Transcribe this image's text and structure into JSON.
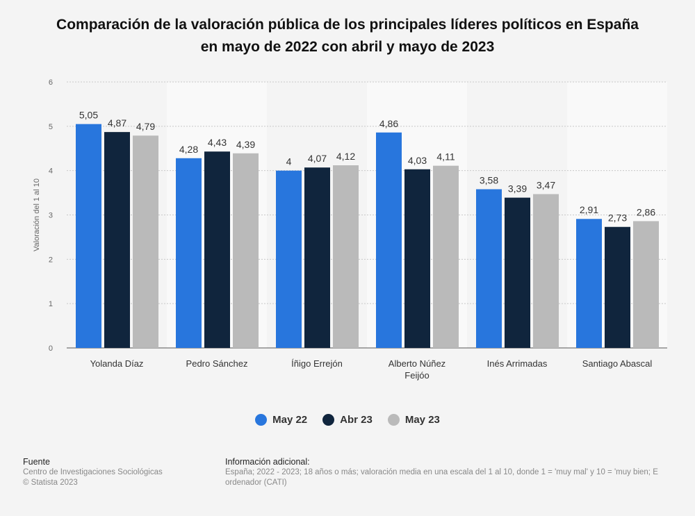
{
  "title_line1": "Comparación de la valoración pública de los principales líderes políticos en España",
  "title_line2": "en mayo de 2022 con abril y mayo de 2023",
  "chart_data": {
    "type": "bar",
    "title": "Comparación de la valoración pública de los principales líderes políticos en España en mayo de 2022 con abril y mayo de 2023",
    "xlabel": "",
    "ylabel": "Valoración del 1 al 10",
    "ylim": [
      0,
      6
    ],
    "yticks": [
      "0",
      "1",
      "2",
      "3",
      "4",
      "5",
      "6"
    ],
    "grid": true,
    "legend_position": "bottom",
    "categories": [
      [
        "Yolanda Díaz"
      ],
      [
        "Pedro Sánchez"
      ],
      [
        "Íñigo Errejón"
      ],
      [
        "Alberto Núñez",
        "Feijóo"
      ],
      [
        "Inés Arrimadas"
      ],
      [
        "Santiago Abascal"
      ]
    ],
    "series": [
      {
        "name": "May 22",
        "color": "#2876dd",
        "values": [
          5.05,
          4.28,
          4,
          4.86,
          3.58,
          2.91
        ],
        "labels": [
          "5,05",
          "4,28",
          "4",
          "4,86",
          "3,58",
          "2,91"
        ]
      },
      {
        "name": "Abr 23",
        "color": "#10253d",
        "values": [
          4.87,
          4.43,
          4.07,
          4.03,
          3.39,
          2.73
        ],
        "labels": [
          "4,87",
          "4,43",
          "4,07",
          "4,03",
          "3,39",
          "2,73"
        ]
      },
      {
        "name": "May 23",
        "color": "#bababa",
        "values": [
          4.79,
          4.39,
          4.12,
          4.11,
          3.47,
          2.86
        ],
        "labels": [
          "4,79",
          "4,39",
          "4,12",
          "4,11",
          "3,47",
          "2,86"
        ]
      }
    ]
  },
  "footer": {
    "source_heading": "Fuente",
    "source_lines": [
      "Centro de Investigaciones Sociológicas",
      "© Statista 2023"
    ],
    "info_heading": "Información adicional:",
    "info_lines": [
      "España; 2022 - 2023; 18 años o más; valoración media en una escala del 1 al 10, donde 1 = 'muy mal' y 10 = 'muy bien; E",
      "ordenador (CATI)"
    ]
  }
}
